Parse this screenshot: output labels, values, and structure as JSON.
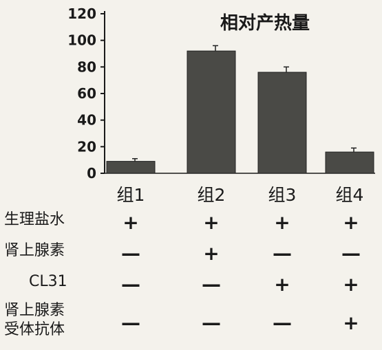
{
  "chart_data": {
    "type": "bar",
    "title": "相对产热量",
    "categories": [
      "组1",
      "组2",
      "组3",
      "组4"
    ],
    "values": [
      9,
      92,
      76,
      16
    ],
    "error": [
      2,
      4,
      4,
      3
    ],
    "ylim": [
      0,
      120
    ],
    "yticks": [
      0,
      20,
      40,
      60,
      80,
      100,
      120
    ],
    "xlabel": "",
    "ylabel": "",
    "bar_color": "#4a4a46",
    "grid": false
  },
  "treatment_table": {
    "rows": [
      {
        "label": "生理盐水",
        "marks": [
          "+",
          "+",
          "+",
          "+"
        ]
      },
      {
        "label": "肾上腺素",
        "marks": [
          "—",
          "+",
          "—",
          "—"
        ]
      },
      {
        "label": "CL31",
        "marks": [
          "—",
          "—",
          "+",
          "+"
        ]
      },
      {
        "label": "肾上腺素",
        "label2": "受体抗体",
        "marks": [
          "—",
          "—",
          "—",
          "+"
        ]
      }
    ]
  }
}
